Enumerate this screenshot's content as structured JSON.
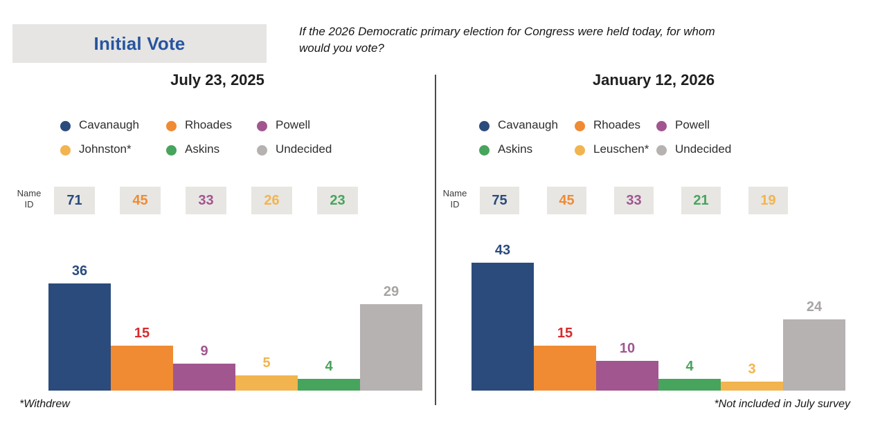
{
  "header": {
    "tab_label": "Initial Vote",
    "question_line1": "If the 2026 Democratic primary election for Congress were held today, for whom",
    "question_line2": "would you vote?"
  },
  "colors": {
    "navy": "#2b4b7c",
    "orange": "#f08b33",
    "purple": "#a1568f",
    "yellow": "#f2b44e",
    "green": "#47a45c",
    "gray": "#b5b2b1",
    "gray_label": "#a7a4a3",
    "red": "#d62a2c",
    "title_blue": "#2655a0",
    "box_bg": "#e7e6e3",
    "divider": "#4a4a4a"
  },
  "chart_data": [
    {
      "type": "bar",
      "title": "July 23, 2025",
      "categories": [
        "Cavanaugh",
        "Rhoades",
        "Powell",
        "Johnston*",
        "Askins",
        "Undecided"
      ],
      "values": [
        36,
        15,
        9,
        5,
        4,
        29
      ],
      "name_id_label": "Name ID",
      "name_id_values": [
        71,
        45,
        33,
        26,
        23
      ],
      "ylim": [
        0,
        45
      ],
      "grid": false,
      "legend_position": "top",
      "footnote": "*Withdrew",
      "candidates": [
        {
          "name": "Cavanaugh",
          "color": "navy",
          "name_id": 71,
          "vote": 36,
          "vote_label_color": "navy"
        },
        {
          "name": "Rhoades",
          "color": "orange",
          "name_id": 45,
          "vote": 15,
          "vote_label_color": "red"
        },
        {
          "name": "Powell",
          "color": "purple",
          "name_id": 33,
          "vote": 9,
          "vote_label_color": "purple"
        },
        {
          "name": "Johnston*",
          "color": "yellow",
          "name_id": 26,
          "vote": 5,
          "vote_label_color": "yellow"
        },
        {
          "name": "Askins",
          "color": "green",
          "name_id": 23,
          "vote": 4,
          "vote_label_color": "green"
        },
        {
          "name": "Undecided",
          "color": "gray",
          "name_id": null,
          "vote": 29,
          "vote_label_color": "gray_label"
        }
      ]
    },
    {
      "type": "bar",
      "title": "January 12, 2026",
      "categories": [
        "Cavanaugh",
        "Rhoades",
        "Powell",
        "Askins",
        "Leuschen*",
        "Undecided"
      ],
      "values": [
        43,
        15,
        10,
        4,
        3,
        24
      ],
      "name_id_label": "Name ID",
      "name_id_values": [
        75,
        45,
        33,
        21,
        19
      ],
      "ylim": [
        0,
        45
      ],
      "grid": false,
      "legend_position": "top",
      "footnote": "*Not included in July survey",
      "candidates": [
        {
          "name": "Cavanaugh",
          "color": "navy",
          "name_id": 75,
          "vote": 43,
          "vote_label_color": "navy"
        },
        {
          "name": "Rhoades",
          "color": "orange",
          "name_id": 45,
          "vote": 15,
          "vote_label_color": "red"
        },
        {
          "name": "Powell",
          "color": "purple",
          "name_id": 33,
          "vote": 10,
          "vote_label_color": "purple"
        },
        {
          "name": "Askins",
          "color": "green",
          "name_id": 21,
          "vote": 4,
          "vote_label_color": "green"
        },
        {
          "name": "Leuschen*",
          "color": "yellow",
          "name_id": 19,
          "vote": 3,
          "vote_label_color": "yellow"
        },
        {
          "name": "Undecided",
          "color": "gray",
          "name_id": null,
          "vote": 24,
          "vote_label_color": "gray_label"
        }
      ]
    }
  ]
}
